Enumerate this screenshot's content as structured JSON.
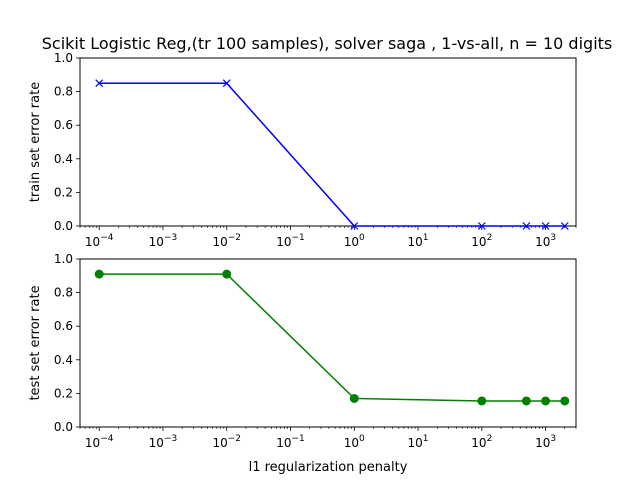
{
  "chart_data": [
    {
      "type": "line",
      "title": "Scikit Logistic Reg,(tr 100 samples), solver saga , 1-vs-all, n = 10 digits",
      "xlabel": "",
      "ylabel": "train set error rate",
      "xscale": "log",
      "xlim": [
        5e-05,
        3000
      ],
      "ylim": [
        0,
        1
      ],
      "x_ticks": [
        {
          "base": "10",
          "exp": "−4"
        },
        {
          "base": "10",
          "exp": "−3"
        },
        {
          "base": "10",
          "exp": "−2"
        },
        {
          "base": "10",
          "exp": "−1"
        },
        {
          "base": "10",
          "exp": "0"
        },
        {
          "base": "10",
          "exp": "1"
        },
        {
          "base": "10",
          "exp": "2"
        },
        {
          "base": "10",
          "exp": "3"
        }
      ],
      "y_ticks": [
        "0.0",
        "0.2",
        "0.4",
        "0.6",
        "0.8",
        "1.0"
      ],
      "grid": false,
      "series": [
        {
          "color": "#0000ff",
          "marker": "x",
          "x": [
            0.0001,
            0.01,
            1,
            100,
            500,
            1000,
            2000
          ],
          "y": [
            0.85,
            0.85,
            0.0,
            0.0,
            0.0,
            0.0,
            0.0
          ]
        }
      ]
    },
    {
      "type": "line",
      "title": "",
      "xlabel": "l1 regularization penalty",
      "ylabel": "test set error rate",
      "xscale": "log",
      "xlim": [
        5e-05,
        3000
      ],
      "ylim": [
        0,
        1
      ],
      "x_ticks": [
        {
          "base": "10",
          "exp": "−4"
        },
        {
          "base": "10",
          "exp": "−3"
        },
        {
          "base": "10",
          "exp": "−2"
        },
        {
          "base": "10",
          "exp": "−1"
        },
        {
          "base": "10",
          "exp": "0"
        },
        {
          "base": "10",
          "exp": "1"
        },
        {
          "base": "10",
          "exp": "2"
        },
        {
          "base": "10",
          "exp": "3"
        }
      ],
      "y_ticks": [
        "0.0",
        "0.2",
        "0.4",
        "0.6",
        "0.8",
        "1.0"
      ],
      "grid": false,
      "series": [
        {
          "color": "#008000",
          "marker": "o",
          "x": [
            0.0001,
            0.01,
            1,
            100,
            500,
            1000,
            2000
          ],
          "y": [
            0.91,
            0.91,
            0.17,
            0.155,
            0.155,
            0.155,
            0.155
          ]
        }
      ]
    }
  ]
}
